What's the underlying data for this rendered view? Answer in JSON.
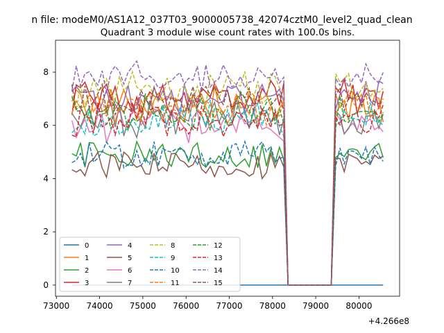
{
  "figure": {
    "suptitle": "n file: modeM0/AS1A12_037T03_9000005738_42074cztM0_level2_quad_clean",
    "title": "Quadrant 3 module wise count rates with 100.0s bins.",
    "offset_text": "+4.266e8"
  },
  "colors": [
    "#1f77b4",
    "#ff7f0e",
    "#2ca02c",
    "#d62728",
    "#9467bd",
    "#8c564b",
    "#e377c2",
    "#7f7f7f",
    "#bcbd22",
    "#17becf"
  ],
  "chart_data": {
    "type": "line",
    "xlim": [
      72980,
      80940
    ],
    "ylim": [
      -0.42,
      9.2
    ],
    "xticks": [
      73000,
      74000,
      75000,
      76000,
      77000,
      78000,
      79000,
      80000
    ],
    "xtick_labels": [
      "73000",
      "74000",
      "75000",
      "76000",
      "77000",
      "78000",
      "79000",
      "80000"
    ],
    "yticks": [
      0,
      2,
      4,
      6,
      8
    ],
    "ytick_labels": [
      "0",
      "2",
      "4",
      "6",
      "8"
    ],
    "x_offset": "+4.266e8",
    "grid": false,
    "legend": {
      "placement": "lower-left",
      "columns": 4
    },
    "gap": {
      "drop_start": 78300,
      "low_start": 78360,
      "low_end": 79400,
      "rise_end": 79600
    },
    "series": [
      {
        "name": "0",
        "style": "solid",
        "color": "#1f77b4",
        "level": 0.0
      },
      {
        "name": "1",
        "style": "solid",
        "color": "#ff7f0e",
        "level": 6.8
      },
      {
        "name": "2",
        "style": "solid",
        "color": "#2ca02c",
        "level": 4.9
      },
      {
        "name": "3",
        "style": "solid",
        "color": "#d62728",
        "level": 7.1
      },
      {
        "name": "4",
        "style": "solid",
        "color": "#9467bd",
        "level": 7.0
      },
      {
        "name": "5",
        "style": "solid",
        "color": "#8c564b",
        "level": 4.5
      },
      {
        "name": "6",
        "style": "solid",
        "color": "#e377c2",
        "level": 6.0
      },
      {
        "name": "7",
        "style": "solid",
        "color": "#7f7f7f",
        "level": 6.3
      },
      {
        "name": "8",
        "style": "dashed",
        "color": "#bcbd22",
        "level": 7.3
      },
      {
        "name": "9",
        "style": "dashed",
        "color": "#17becf",
        "level": 6.3
      },
      {
        "name": "10",
        "style": "dashed",
        "color": "#1f77b4",
        "level": 4.9
      },
      {
        "name": "11",
        "style": "dashed",
        "color": "#ff7f0e",
        "level": 6.7
      },
      {
        "name": "12",
        "style": "dashed",
        "color": "#2ca02c",
        "level": 6.5
      },
      {
        "name": "13",
        "style": "dashed",
        "color": "#d62728",
        "level": 6.2
      },
      {
        "name": "14",
        "style": "dashed",
        "color": "#9467bd",
        "level": 7.8
      },
      {
        "name": "15",
        "style": "dashed",
        "color": "#8c564b",
        "level": 7.0
      }
    ]
  }
}
